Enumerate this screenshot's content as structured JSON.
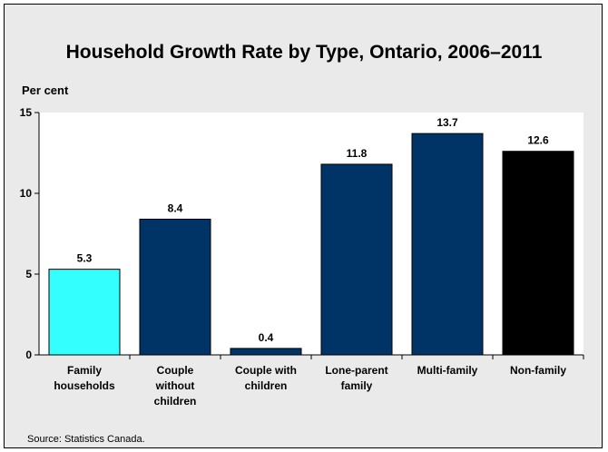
{
  "chart_data": {
    "type": "bar",
    "title": "Household Growth Rate by Type, Ontario, 2006–2011",
    "ylabel": "Per cent",
    "xlabel": "",
    "categories": [
      [
        "Family",
        "households"
      ],
      [
        "Couple",
        "without",
        "children"
      ],
      [
        "Couple with",
        "children"
      ],
      [
        "Lone-parent",
        "family"
      ],
      [
        "Multi-family"
      ],
      [
        "Non-family"
      ]
    ],
    "values": [
      5.3,
      8.4,
      0.4,
      11.8,
      13.7,
      12.6
    ],
    "value_labels": [
      "5.3",
      "8.4",
      "0.4",
      "11.8",
      "13.7",
      "12.6"
    ],
    "bar_colors": [
      "#33ffff",
      "#003366",
      "#003366",
      "#003366",
      "#003366",
      "#000000"
    ],
    "ylim": [
      0,
      15
    ],
    "yticks": [
      0,
      5,
      10,
      15
    ],
    "grid": false,
    "legend": "none"
  },
  "source": "Source: Statistics Canada."
}
